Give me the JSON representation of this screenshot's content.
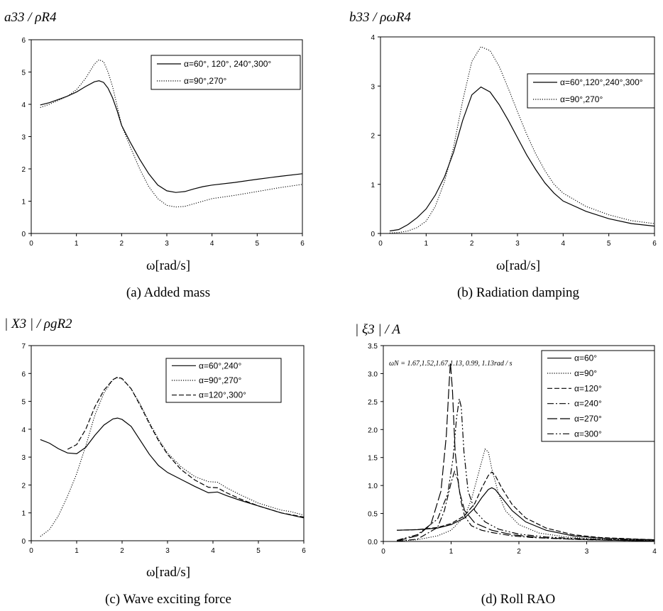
{
  "panels": [
    {
      "caption": "(a) Added mass",
      "ylabel": "a33 / ρR4",
      "xlabel": "ω[rad/s]"
    },
    {
      "caption": "(b) Radiation damping",
      "ylabel": "b33 / ρωR4",
      "xlabel": "ω[rad/s]"
    },
    {
      "caption": "(c) Wave exciting force",
      "ylabel": "| X3 | / ρgR2",
      "xlabel": "ω[rad/s]"
    },
    {
      "caption": "(d) Roll RAO",
      "ylabel": "| ξ3 | / A",
      "xlabel": "",
      "annotation": "ωN = 1.67,1.52,1.67,1.13, 0.99, 1.13rad / s"
    }
  ],
  "chart_data": [
    {
      "type": "line",
      "title": "(a) Added mass",
      "xlabel": "ω[rad/s]",
      "ylabel": "a33 / ρR4",
      "xlim": [
        0,
        6
      ],
      "ylim": [
        0,
        6
      ],
      "xticks": [
        0,
        1,
        2,
        3,
        4,
        5,
        6
      ],
      "yticks": [
        0,
        1,
        2,
        3,
        4,
        5,
        6
      ],
      "legend_position": "top-right",
      "series": [
        {
          "name": "α=60°, 120°, 240°,300°",
          "style": "solid",
          "x": [
            0.2,
            0.4,
            0.6,
            0.8,
            1.0,
            1.2,
            1.4,
            1.5,
            1.6,
            1.7,
            1.8,
            1.9,
            2.0,
            2.2,
            2.4,
            2.6,
            2.8,
            3.0,
            3.2,
            3.4,
            3.6,
            3.8,
            4.0,
            4.5,
            5.0,
            5.5,
            6.0
          ],
          "y": [
            3.98,
            4.05,
            4.15,
            4.25,
            4.38,
            4.55,
            4.7,
            4.73,
            4.68,
            4.5,
            4.2,
            3.8,
            3.35,
            2.8,
            2.3,
            1.85,
            1.5,
            1.32,
            1.27,
            1.3,
            1.38,
            1.45,
            1.5,
            1.58,
            1.68,
            1.77,
            1.85
          ]
        },
        {
          "name": "α=90°,270°",
          "style": "dotted",
          "x": [
            0.2,
            0.4,
            0.6,
            0.8,
            1.0,
            1.2,
            1.4,
            1.5,
            1.6,
            1.7,
            1.8,
            1.9,
            2.0,
            2.2,
            2.4,
            2.6,
            2.8,
            3.0,
            3.2,
            3.4,
            3.6,
            3.8,
            4.0,
            4.5,
            5.0,
            5.5,
            6.0
          ],
          "y": [
            3.9,
            4.0,
            4.12,
            4.25,
            4.45,
            4.8,
            5.25,
            5.38,
            5.32,
            5.0,
            4.55,
            3.95,
            3.35,
            2.65,
            2.0,
            1.45,
            1.08,
            0.87,
            0.82,
            0.84,
            0.92,
            1.0,
            1.08,
            1.18,
            1.3,
            1.42,
            1.52
          ]
        }
      ]
    },
    {
      "type": "line",
      "title": "(b) Radiation damping",
      "xlabel": "ω[rad/s]",
      "ylabel": "b33 / ρωR4",
      "xlim": [
        0,
        6
      ],
      "ylim": [
        0,
        4
      ],
      "xticks": [
        0,
        1,
        2,
        3,
        4,
        5,
        6
      ],
      "yticks": [
        0,
        1,
        2,
        3,
        4
      ],
      "legend_position": "top-right",
      "series": [
        {
          "name": "α=60°,120°,240°,300°",
          "style": "solid",
          "x": [
            0.2,
            0.4,
            0.6,
            0.8,
            1.0,
            1.2,
            1.4,
            1.6,
            1.8,
            2.0,
            2.2,
            2.4,
            2.6,
            2.8,
            3.0,
            3.2,
            3.4,
            3.6,
            3.8,
            4.0,
            4.5,
            5.0,
            5.5,
            6.0
          ],
          "y": [
            0.05,
            0.08,
            0.18,
            0.32,
            0.5,
            0.78,
            1.15,
            1.65,
            2.3,
            2.82,
            2.98,
            2.88,
            2.62,
            2.3,
            1.95,
            1.6,
            1.3,
            1.03,
            0.82,
            0.66,
            0.45,
            0.3,
            0.2,
            0.15
          ]
        },
        {
          "name": "α=90°,270°",
          "style": "dotted",
          "x": [
            0.2,
            0.4,
            0.6,
            0.8,
            1.0,
            1.2,
            1.4,
            1.6,
            1.8,
            2.0,
            2.2,
            2.4,
            2.6,
            2.8,
            3.0,
            3.2,
            3.4,
            3.6,
            3.8,
            4.0,
            4.5,
            5.0,
            5.5,
            6.0
          ],
          "y": [
            0.01,
            0.02,
            0.05,
            0.12,
            0.25,
            0.55,
            1.05,
            1.75,
            2.7,
            3.5,
            3.8,
            3.72,
            3.4,
            2.95,
            2.48,
            2.02,
            1.62,
            1.28,
            1.0,
            0.82,
            0.55,
            0.38,
            0.26,
            0.2
          ]
        }
      ]
    },
    {
      "type": "line",
      "title": "(c) Wave exciting force",
      "xlabel": "ω[rad/s]",
      "ylabel": "| X3 | / ρgR2",
      "xlim": [
        0,
        6
      ],
      "ylim": [
        0,
        7
      ],
      "xticks": [
        0,
        1,
        2,
        3,
        4,
        5,
        6
      ],
      "yticks": [
        0,
        1,
        2,
        3,
        4,
        5,
        6,
        7
      ],
      "legend_position": "top-right",
      "series": [
        {
          "name": "α=60°,240°",
          "style": "solid",
          "x": [
            0.2,
            0.4,
            0.6,
            0.8,
            1.0,
            1.2,
            1.4,
            1.6,
            1.8,
            1.9,
            2.0,
            2.2,
            2.4,
            2.6,
            2.8,
            3.0,
            3.3,
            3.6,
            3.9,
            4.1,
            4.3,
            4.6,
            5.0,
            5.5,
            6.0
          ],
          "y": [
            3.63,
            3.5,
            3.3,
            3.15,
            3.12,
            3.35,
            3.78,
            4.15,
            4.37,
            4.4,
            4.35,
            4.1,
            3.6,
            3.1,
            2.7,
            2.45,
            2.2,
            1.95,
            1.72,
            1.75,
            1.62,
            1.45,
            1.25,
            1.0,
            0.82
          ]
        },
        {
          "name": "α=90°,270°",
          "style": "dotted",
          "x": [
            0.2,
            0.4,
            0.6,
            0.8,
            1.0,
            1.2,
            1.4,
            1.6,
            1.8,
            1.9,
            2.0,
            2.2,
            2.4,
            2.6,
            2.8,
            3.0,
            3.3,
            3.6,
            3.9,
            4.1,
            4.3,
            4.6,
            5.0,
            5.5,
            5.7,
            6.0
          ],
          "y": [
            0.15,
            0.4,
            0.9,
            1.6,
            2.4,
            3.4,
            4.5,
            5.3,
            5.78,
            5.85,
            5.8,
            5.45,
            4.9,
            4.25,
            3.65,
            3.15,
            2.65,
            2.3,
            2.12,
            2.1,
            1.9,
            1.65,
            1.35,
            1.1,
            1.05,
            0.92
          ]
        },
        {
          "name": "α=120°,300°",
          "style": "dashed",
          "x": [
            0.8,
            1.0,
            1.2,
            1.4,
            1.6,
            1.8,
            1.9,
            2.0,
            2.2,
            2.4,
            2.6,
            2.8,
            3.0,
            3.3,
            3.6,
            3.9,
            4.1,
            4.3,
            4.6,
            5.0,
            5.5,
            6.0
          ],
          "y": [
            3.28,
            3.45,
            4.0,
            4.8,
            5.4,
            5.78,
            5.87,
            5.82,
            5.45,
            4.85,
            4.2,
            3.6,
            3.1,
            2.55,
            2.18,
            1.92,
            1.9,
            1.72,
            1.5,
            1.25,
            1.0,
            0.85
          ]
        }
      ]
    },
    {
      "type": "line",
      "title": "(d) Roll RAO",
      "xlabel": "",
      "ylabel": "| ξ3 | / A",
      "xlim": [
        0,
        4
      ],
      "ylim": [
        0,
        3.5
      ],
      "xticks": [
        0,
        1,
        2,
        3,
        4
      ],
      "yticks": [
        0.0,
        0.5,
        1.0,
        1.5,
        2.0,
        2.5,
        3.0,
        3.5
      ],
      "legend_position": "top-right",
      "annotation": "ωN = 1.67,1.52,1.67,1.13, 0.99, 1.13rad / s",
      "series": [
        {
          "name": "α=60°",
          "style": "solid",
          "x": [
            0.2,
            0.5,
            0.8,
            1.0,
            1.2,
            1.35,
            1.45,
            1.55,
            1.6,
            1.65,
            1.75,
            1.9,
            2.1,
            2.4,
            2.8,
            3.2,
            3.6,
            4.0
          ],
          "y": [
            0.2,
            0.21,
            0.24,
            0.3,
            0.42,
            0.6,
            0.78,
            0.93,
            0.96,
            0.93,
            0.78,
            0.55,
            0.35,
            0.2,
            0.1,
            0.06,
            0.04,
            0.03
          ]
        },
        {
          "name": "α=90°",
          "style": "dotted",
          "x": [
            0.2,
            0.5,
            0.8,
            1.0,
            1.2,
            1.3,
            1.4,
            1.5,
            1.55,
            1.6,
            1.7,
            1.8,
            2.0,
            2.3,
            2.7,
            3.2,
            3.6,
            4.0
          ],
          "y": [
            0.005,
            0.03,
            0.1,
            0.2,
            0.45,
            0.75,
            1.2,
            1.65,
            1.6,
            1.3,
            0.85,
            0.55,
            0.3,
            0.15,
            0.08,
            0.04,
            0.03,
            0.02
          ]
        },
        {
          "name": "α=120°",
          "style": "dashed",
          "x": [
            0.2,
            0.5,
            0.8,
            1.0,
            1.2,
            1.35,
            1.45,
            1.55,
            1.6,
            1.65,
            1.75,
            1.9,
            2.1,
            2.4,
            2.8,
            3.2,
            3.6,
            4.0
          ],
          "y": [
            0.2,
            0.21,
            0.25,
            0.32,
            0.46,
            0.68,
            0.95,
            1.18,
            1.24,
            1.18,
            0.95,
            0.66,
            0.42,
            0.24,
            0.12,
            0.07,
            0.05,
            0.03
          ]
        },
        {
          "name": "α=240°",
          "style": "dashdot",
          "x": [
            0.2,
            0.5,
            0.8,
            0.9,
            1.0,
            1.05,
            1.1,
            1.15,
            1.2,
            1.3,
            1.45,
            1.6,
            1.9,
            2.2,
            2.6,
            3.0,
            3.5,
            4.0
          ],
          "y": [
            0.005,
            0.04,
            0.25,
            0.55,
            1.05,
            1.25,
            1.1,
            0.7,
            0.45,
            0.28,
            0.2,
            0.16,
            0.1,
            0.07,
            0.05,
            0.03,
            0.02,
            0.01
          ]
        },
        {
          "name": "α=270°",
          "style": "longdash",
          "x": [
            0.2,
            0.5,
            0.7,
            0.85,
            0.93,
            0.97,
            0.99,
            1.02,
            1.06,
            1.12,
            1.2,
            1.35,
            1.6,
            1.9,
            2.3,
            2.8,
            3.4,
            4.0
          ],
          "y": [
            0.01,
            0.1,
            0.3,
            0.9,
            1.9,
            2.8,
            3.2,
            2.7,
            1.6,
            0.9,
            0.55,
            0.33,
            0.2,
            0.12,
            0.07,
            0.04,
            0.02,
            0.01
          ]
        },
        {
          "name": "α=300°",
          "style": "dashdotdot",
          "x": [
            0.2,
            0.5,
            0.8,
            0.95,
            1.03,
            1.08,
            1.12,
            1.15,
            1.19,
            1.25,
            1.35,
            1.5,
            1.7,
            2.0,
            2.4,
            2.9,
            3.4,
            4.0
          ],
          "y": [
            0.02,
            0.12,
            0.4,
            0.85,
            1.5,
            2.2,
            2.55,
            2.4,
            1.6,
            0.9,
            0.55,
            0.35,
            0.22,
            0.13,
            0.08,
            0.05,
            0.03,
            0.02
          ]
        }
      ]
    }
  ]
}
